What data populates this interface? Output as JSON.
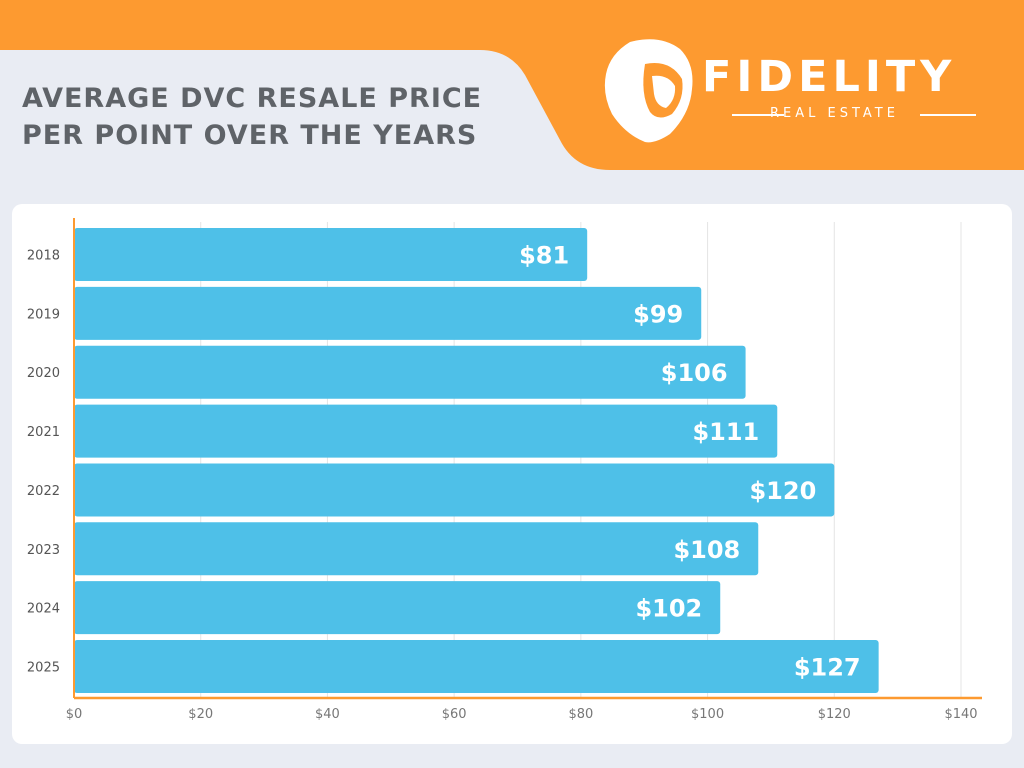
{
  "header": {
    "title_line1": "AVERAGE DVC RESALE PRICE",
    "title_line2": "PER POINT OVER THE YEARS"
  },
  "logo": {
    "brand": "FIDELITY",
    "tagline": "REAL ESTATE",
    "icon": "lion-head-icon"
  },
  "colors": {
    "bar": "#4ec0e8",
    "accent": "#fd9a30",
    "background": "#e9ecf3",
    "title": "#5f6368"
  },
  "chart_data": {
    "type": "bar",
    "orientation": "horizontal",
    "title": "AVERAGE DVC RESALE PRICE PER POINT OVER THE YEARS",
    "categories": [
      "2018",
      "2019",
      "2020",
      "2021",
      "2022",
      "2023",
      "2024",
      "2025"
    ],
    "values": [
      81,
      99,
      106,
      111,
      120,
      108,
      102,
      127
    ],
    "data_labels": [
      "$81",
      "$99",
      "$106",
      "$111",
      "$120",
      "$108",
      "$102",
      "$127"
    ],
    "xlim": [
      0,
      140
    ],
    "xticks": [
      0,
      20,
      40,
      60,
      80,
      100,
      120,
      140
    ],
    "xtick_labels": [
      "$0",
      "$20",
      "$40",
      "$60",
      "$80",
      "$100",
      "$120",
      "$140"
    ],
    "grid": true,
    "legend": "none"
  }
}
